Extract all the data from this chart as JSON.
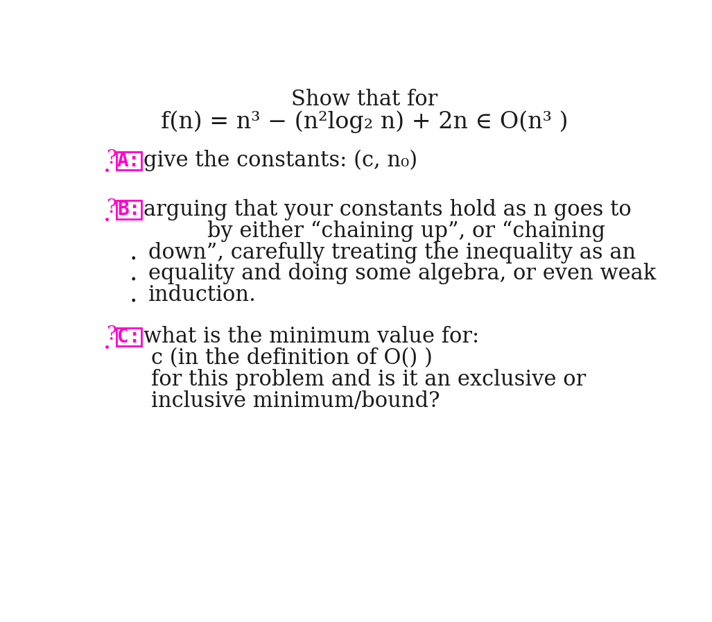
{
  "bg_color": "#ffffff",
  "title_line1": "Show that for",
  "title_line2": "f(n) = n³ − (n²log₂ n) + 2n ∈ O(n³ )",
  "section_A_label": "A:",
  "section_A_text": "give the constants: (c, n₀)",
  "section_B_label": "B:",
  "section_B_lines": [
    "arguing that your constants hold as n goes to",
    "by either “chaining up”, or “chaining",
    "down”, carefully treating the inequality as an",
    "equality and doing some algebra, or even weak",
    "induction."
  ],
  "section_C_label": "C:",
  "section_C_lines": [
    "what is the minimum value for:",
    "c (in the definition of O() )",
    "for this problem and is it an exclusive or",
    "inclusive minimum/bound?"
  ],
  "magenta": "#ff00cc",
  "black": "#1a1a1a"
}
